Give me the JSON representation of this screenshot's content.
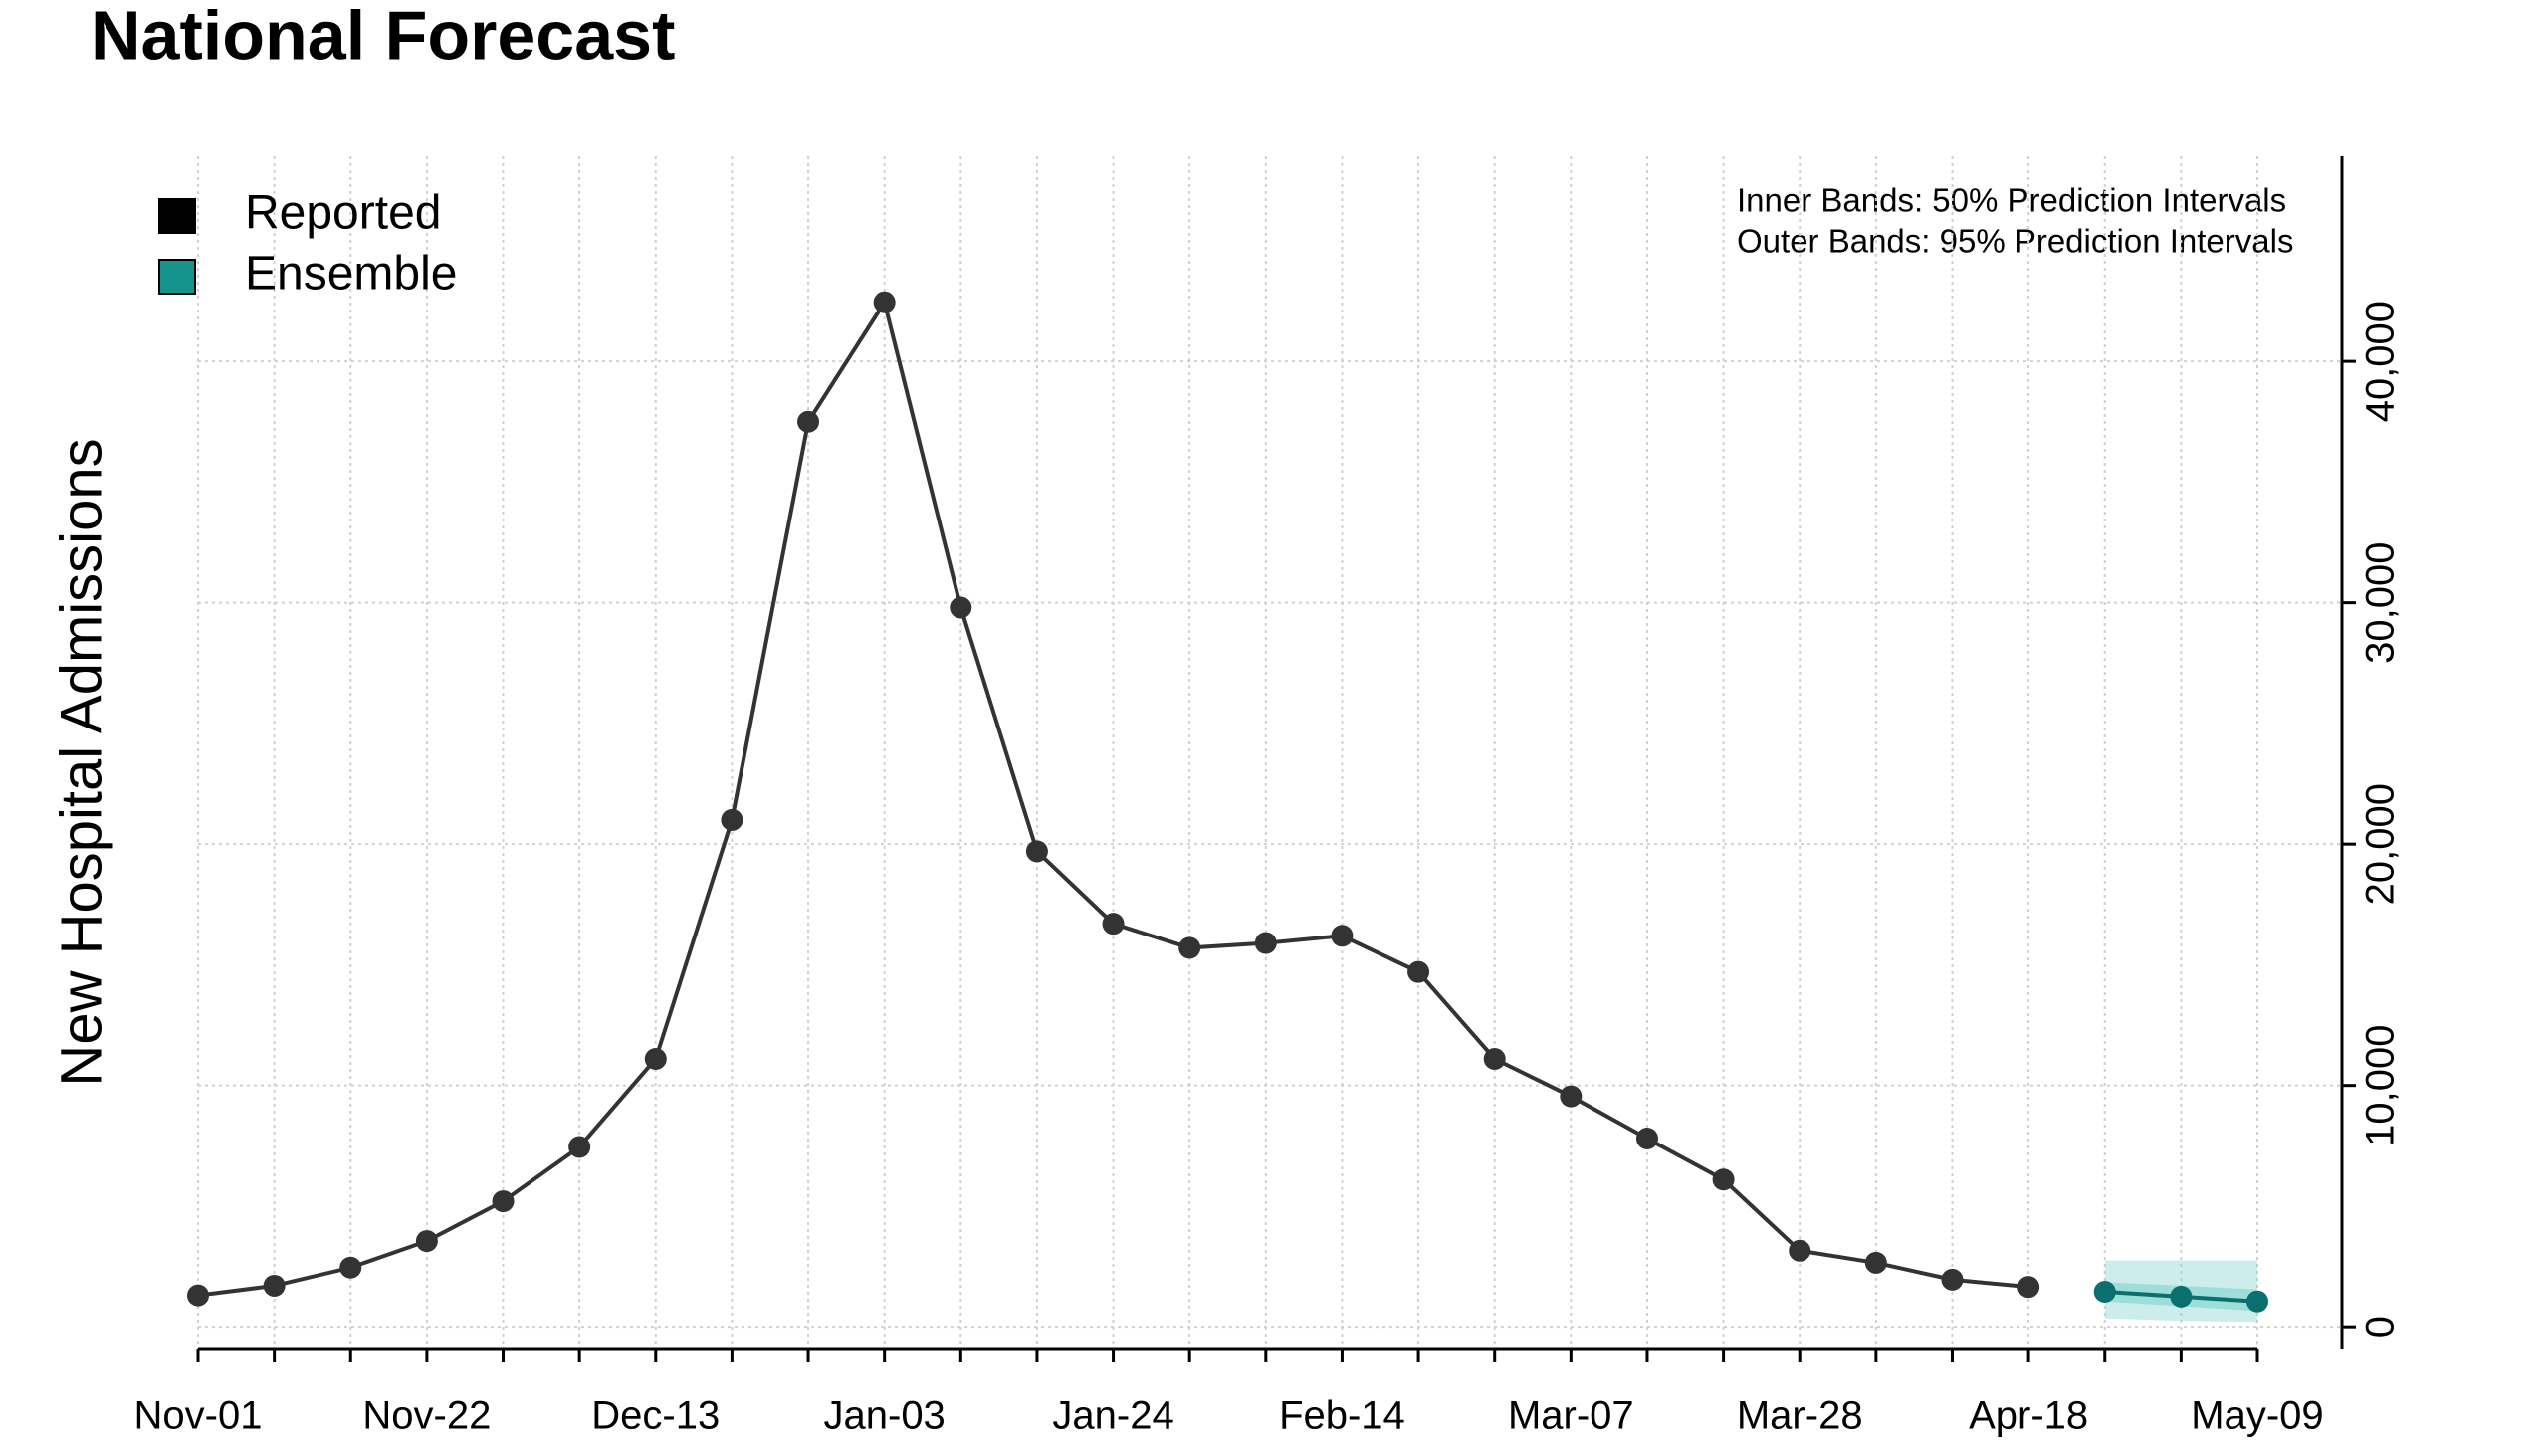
{
  "chart_data": {
    "type": "line",
    "title": "National Forecast",
    "y_label": "New Hospital Admissions",
    "annotations": [
      "Inner Bands: 50% Prediction Intervals",
      "Outer Bands: 95% Prediction Intervals"
    ],
    "categories": [
      "Nov-01",
      null,
      null,
      "Nov-22",
      null,
      null,
      "Dec-13",
      null,
      null,
      "Jan-03",
      null,
      null,
      "Jan-24",
      null,
      null,
      "Feb-14",
      null,
      null,
      "Mar-07",
      null,
      null,
      "Mar-28",
      null,
      null,
      "Apr-18",
      null,
      null,
      "May-09"
    ],
    "series": [
      {
        "name": "Reported",
        "color": "#333333",
        "legend_color": "#000000",
        "values": [
          1300,
          1700,
          2450,
          3550,
          5200,
          7450,
          11100,
          21000,
          37500,
          42450,
          29800,
          19700,
          16700,
          15700,
          15900,
          16200,
          14700,
          11100,
          9550,
          7800,
          6100,
          3150,
          2650,
          1950,
          1650,
          null,
          null,
          null
        ]
      },
      {
        "name": "Ensemble",
        "color": "#0b6f6f",
        "legend_color": "#15938d",
        "band_color": "#7fd3cc",
        "values": [
          null,
          null,
          null,
          null,
          null,
          null,
          null,
          null,
          null,
          null,
          null,
          null,
          null,
          null,
          null,
          null,
          null,
          null,
          null,
          null,
          null,
          null,
          null,
          null,
          null,
          1450,
          1250,
          1050
        ],
        "lower95": [
          null,
          null,
          null,
          null,
          null,
          null,
          null,
          null,
          null,
          null,
          null,
          null,
          null,
          null,
          null,
          null,
          null,
          null,
          null,
          null,
          null,
          null,
          null,
          null,
          null,
          350,
          250,
          200
        ],
        "upper95": [
          null,
          null,
          null,
          null,
          null,
          null,
          null,
          null,
          null,
          null,
          null,
          null,
          null,
          null,
          null,
          null,
          null,
          null,
          null,
          null,
          null,
          null,
          null,
          null,
          null,
          2750,
          2750,
          2750
        ],
        "lower50": [
          null,
          null,
          null,
          null,
          null,
          null,
          null,
          null,
          null,
          null,
          null,
          null,
          null,
          null,
          null,
          null,
          null,
          null,
          null,
          null,
          null,
          null,
          null,
          null,
          null,
          1050,
          850,
          650
        ],
        "upper50": [
          null,
          null,
          null,
          null,
          null,
          null,
          null,
          null,
          null,
          null,
          null,
          null,
          null,
          null,
          null,
          null,
          null,
          null,
          null,
          null,
          null,
          null,
          null,
          null,
          null,
          1850,
          1700,
          1550
        ]
      }
    ],
    "ylim": [
      -900,
      48500
    ],
    "yticks": [
      0,
      {
        "value": 10000,
        "label": "10,000"
      },
      {
        "value": 20000,
        "label": "20,000"
      },
      {
        "value": 30000,
        "label": "30,000"
      },
      {
        "value": 40000,
        "label": "40,000"
      }
    ],
    "grid": true,
    "legend": "upper left"
  }
}
